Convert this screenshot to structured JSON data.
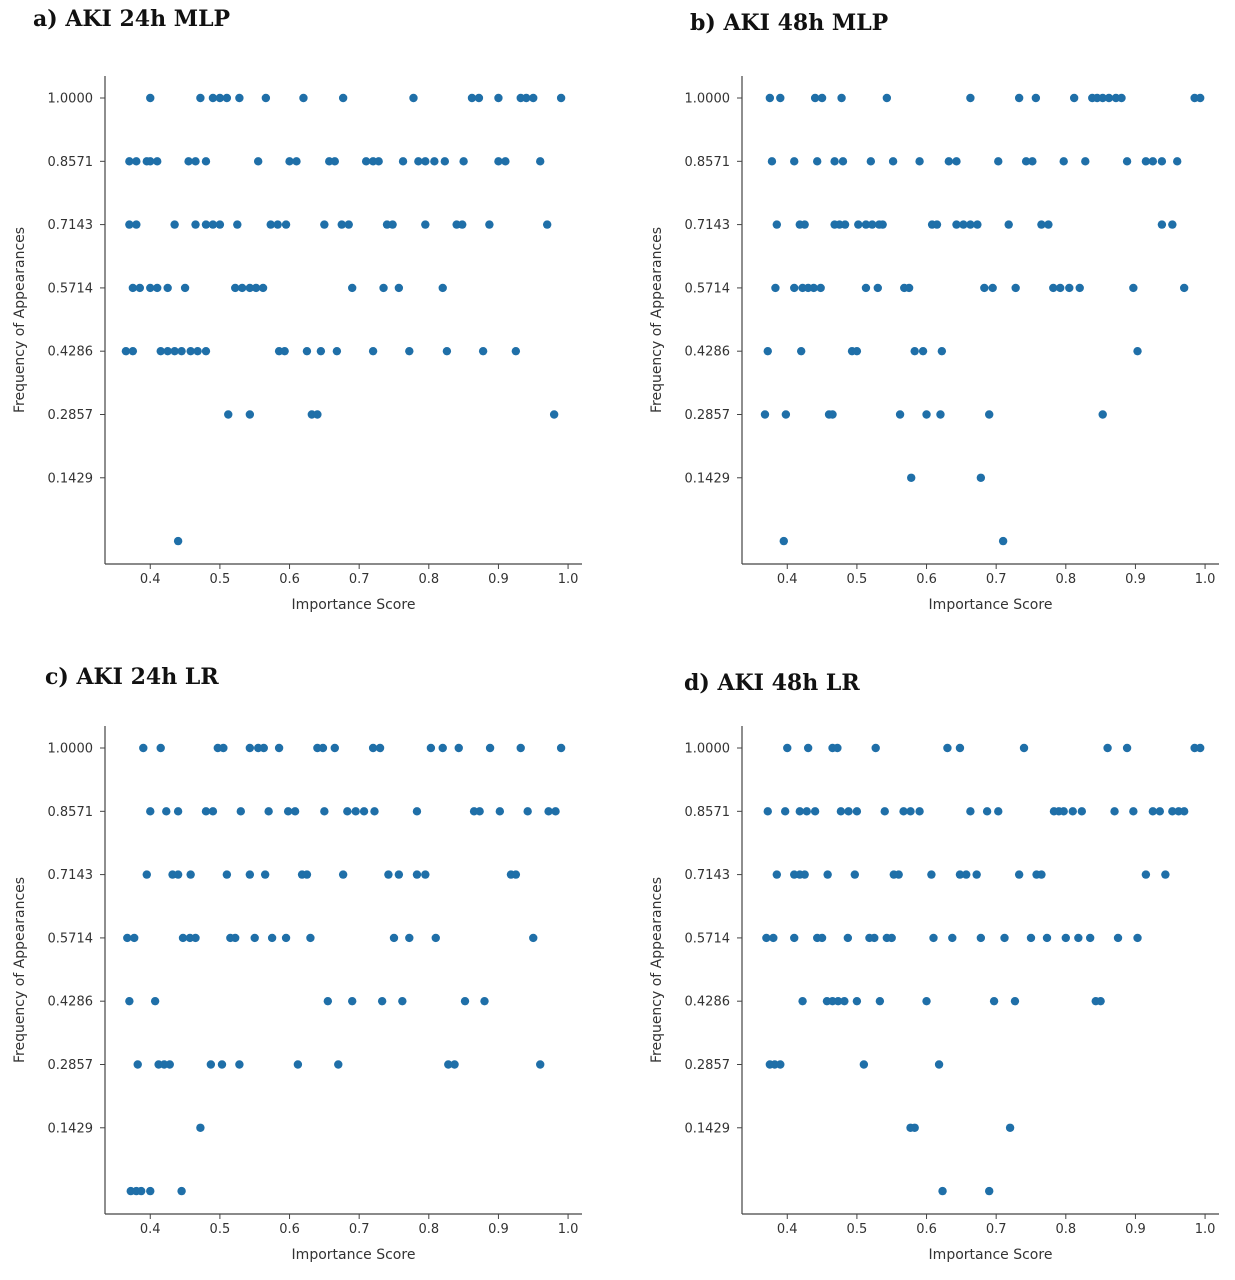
{
  "chart_data": [
    {
      "type": "scatter",
      "title": "a) AKI 24h MLP",
      "xlabel": "Importance Score",
      "ylabel": "Frequency of Appearances",
      "xlim": [
        0.335,
        1.02
      ],
      "xticks": [
        "0.4",
        "0.5",
        "0.6",
        "0.7",
        "0.8",
        "0.9",
        "1.0"
      ],
      "yticks": [
        "1.0000",
        "0.8571",
        "0.7143",
        "0.5714",
        "0.4286",
        "0.2857",
        "0.1429"
      ],
      "color": "#1f6fa8",
      "points": [
        {
          "y": 1.0,
          "x": [
            0.4,
            0.472,
            0.49,
            0.5,
            0.51,
            0.528,
            0.566,
            0.62,
            0.677,
            0.778,
            0.862,
            0.872,
            0.9,
            0.932,
            0.94,
            0.95,
            0.99
          ]
        },
        {
          "y": 0.8571,
          "x": [
            0.37,
            0.38,
            0.395,
            0.4,
            0.41,
            0.455,
            0.465,
            0.48,
            0.555,
            0.6,
            0.61,
            0.657,
            0.665,
            0.71,
            0.72,
            0.728,
            0.763,
            0.785,
            0.795,
            0.808,
            0.823,
            0.85,
            0.9,
            0.91,
            0.96
          ]
        },
        {
          "y": 0.7143,
          "x": [
            0.37,
            0.38,
            0.435,
            0.465,
            0.48,
            0.49,
            0.5,
            0.525,
            0.573,
            0.583,
            0.595,
            0.65,
            0.675,
            0.685,
            0.74,
            0.748,
            0.795,
            0.84,
            0.848,
            0.887,
            0.97
          ]
        },
        {
          "y": 0.5714,
          "x": [
            0.375,
            0.385,
            0.4,
            0.41,
            0.425,
            0.45,
            0.522,
            0.532,
            0.543,
            0.552,
            0.562,
            0.69,
            0.735,
            0.757,
            0.82
          ]
        },
        {
          "y": 0.4286,
          "x": [
            0.365,
            0.375,
            0.415,
            0.425,
            0.435,
            0.445,
            0.458,
            0.468,
            0.48,
            0.585,
            0.593,
            0.625,
            0.645,
            0.668,
            0.72,
            0.772,
            0.826,
            0.878,
            0.925
          ]
        },
        {
          "y": 0.2857,
          "x": [
            0.512,
            0.543,
            0.632,
            0.64,
            0.98
          ]
        },
        {
          "y": 0.0,
          "x": [
            0.44
          ]
        }
      ]
    },
    {
      "type": "scatter",
      "title": "b) AKI 48h MLP",
      "xlabel": "Importance Score",
      "ylabel": "Frequency of Appearances",
      "xlim": [
        0.335,
        1.02
      ],
      "xticks": [
        "0.4",
        "0.5",
        "0.6",
        "0.7",
        "0.8",
        "0.9",
        "1.0"
      ],
      "yticks": [
        "1.0000",
        "0.8571",
        "0.7143",
        "0.5714",
        "0.4286",
        "0.2857",
        "0.1429"
      ],
      "color": "#1f6fa8",
      "points": [
        {
          "y": 1.0,
          "x": [
            0.375,
            0.39,
            0.44,
            0.45,
            0.478,
            0.543,
            0.663,
            0.733,
            0.757,
            0.812,
            0.838,
            0.845,
            0.853,
            0.862,
            0.872,
            0.88,
            0.985,
            0.993
          ]
        },
        {
          "y": 0.8571,
          "x": [
            0.378,
            0.41,
            0.443,
            0.468,
            0.48,
            0.52,
            0.552,
            0.59,
            0.632,
            0.643,
            0.703,
            0.743,
            0.752,
            0.797,
            0.828,
            0.888,
            0.915,
            0.925,
            0.938,
            0.96
          ]
        },
        {
          "y": 0.7143,
          "x": [
            0.385,
            0.418,
            0.425,
            0.468,
            0.475,
            0.483,
            0.502,
            0.513,
            0.522,
            0.532,
            0.537,
            0.608,
            0.615,
            0.643,
            0.653,
            0.663,
            0.673,
            0.718,
            0.765,
            0.775,
            0.938,
            0.953
          ]
        },
        {
          "y": 0.5714,
          "x": [
            0.383,
            0.41,
            0.422,
            0.43,
            0.438,
            0.448,
            0.513,
            0.53,
            0.568,
            0.575,
            0.683,
            0.695,
            0.728,
            0.782,
            0.792,
            0.805,
            0.82,
            0.897,
            0.97
          ]
        },
        {
          "y": 0.4286,
          "x": [
            0.372,
            0.42,
            0.493,
            0.5,
            0.583,
            0.595,
            0.622,
            0.903
          ]
        },
        {
          "y": 0.2857,
          "x": [
            0.368,
            0.398,
            0.46,
            0.465,
            0.562,
            0.6,
            0.62,
            0.69,
            0.853
          ]
        },
        {
          "y": 0.1429,
          "x": [
            0.578,
            0.678
          ]
        },
        {
          "y": 0.0,
          "x": [
            0.395,
            0.71
          ]
        }
      ]
    },
    {
      "type": "scatter",
      "title": "c) AKI 24h LR",
      "xlabel": "Importance Score",
      "ylabel": "Frequency of Appearances",
      "xlim": [
        0.335,
        1.02
      ],
      "xticks": [
        "0.4",
        "0.5",
        "0.6",
        "0.7",
        "0.8",
        "0.9",
        "1.0"
      ],
      "yticks": [
        "1.0000",
        "0.8571",
        "0.7143",
        "0.5714",
        "0.4286",
        "0.2857",
        "0.1429"
      ],
      "color": "#1f6fa8",
      "points": [
        {
          "y": 1.0,
          "x": [
            0.39,
            0.415,
            0.497,
            0.505,
            0.543,
            0.555,
            0.563,
            0.585,
            0.64,
            0.648,
            0.665,
            0.72,
            0.73,
            0.803,
            0.82,
            0.843,
            0.888,
            0.932,
            0.99
          ]
        },
        {
          "y": 0.8571,
          "x": [
            0.4,
            0.423,
            0.44,
            0.48,
            0.49,
            0.53,
            0.57,
            0.598,
            0.608,
            0.65,
            0.683,
            0.695,
            0.707,
            0.722,
            0.783,
            0.865,
            0.873,
            0.902,
            0.942,
            0.972,
            0.982
          ]
        },
        {
          "y": 0.7143,
          "x": [
            0.395,
            0.432,
            0.44,
            0.458,
            0.51,
            0.543,
            0.565,
            0.618,
            0.625,
            0.677,
            0.742,
            0.757,
            0.783,
            0.795,
            0.918,
            0.925
          ]
        },
        {
          "y": 0.5714,
          "x": [
            0.367,
            0.377,
            0.447,
            0.457,
            0.465,
            0.515,
            0.522,
            0.55,
            0.575,
            0.595,
            0.63,
            0.75,
            0.772,
            0.81,
            0.95
          ]
        },
        {
          "y": 0.4286,
          "x": [
            0.37,
            0.407,
            0.655,
            0.69,
            0.733,
            0.762,
            0.852,
            0.88
          ]
        },
        {
          "y": 0.2857,
          "x": [
            0.382,
            0.412,
            0.42,
            0.428,
            0.487,
            0.503,
            0.528,
            0.612,
            0.67,
            0.828,
            0.837,
            0.96
          ]
        },
        {
          "y": 0.1429,
          "x": [
            0.472
          ]
        },
        {
          "y": 0.0,
          "x": [
            0.372,
            0.38,
            0.387,
            0.4,
            0.445
          ]
        }
      ]
    },
    {
      "type": "scatter",
      "title": "d) AKI 48h LR",
      "xlabel": "Importance Score",
      "ylabel": "Frequency of Appearances",
      "xlim": [
        0.335,
        1.02
      ],
      "xticks": [
        "0.4",
        "0.5",
        "0.6",
        "0.7",
        "0.8",
        "0.9",
        "1.0"
      ],
      "yticks": [
        "1.0000",
        "0.8571",
        "0.7143",
        "0.5714",
        "0.4286",
        "0.2857",
        "0.1429"
      ],
      "color": "#1f6fa8",
      "points": [
        {
          "y": 1.0,
          "x": [
            0.4,
            0.43,
            0.465,
            0.472,
            0.527,
            0.63,
            0.648,
            0.74,
            0.86,
            0.888,
            0.985,
            0.993
          ]
        },
        {
          "y": 0.8571,
          "x": [
            0.372,
            0.397,
            0.418,
            0.428,
            0.44,
            0.477,
            0.488,
            0.5,
            0.54,
            0.567,
            0.577,
            0.59,
            0.663,
            0.687,
            0.703,
            0.783,
            0.79,
            0.797,
            0.81,
            0.823,
            0.87,
            0.897,
            0.925,
            0.935,
            0.953,
            0.962,
            0.97
          ]
        },
        {
          "y": 0.7143,
          "x": [
            0.385,
            0.41,
            0.418,
            0.425,
            0.458,
            0.497,
            0.553,
            0.56,
            0.607,
            0.648,
            0.657,
            0.672,
            0.733,
            0.758,
            0.765,
            0.915,
            0.943
          ]
        },
        {
          "y": 0.5714,
          "x": [
            0.37,
            0.38,
            0.41,
            0.443,
            0.45,
            0.487,
            0.518,
            0.525,
            0.543,
            0.55,
            0.61,
            0.637,
            0.678,
            0.712,
            0.75,
            0.773,
            0.8,
            0.818,
            0.835,
            0.875,
            0.903
          ]
        },
        {
          "y": 0.4286,
          "x": [
            0.422,
            0.457,
            0.465,
            0.473,
            0.482,
            0.5,
            0.533,
            0.6,
            0.697,
            0.727,
            0.843,
            0.85
          ]
        },
        {
          "y": 0.2857,
          "x": [
            0.375,
            0.382,
            0.39,
            0.51,
            0.618
          ]
        },
        {
          "y": 0.1429,
          "x": [
            0.577,
            0.583,
            0.72
          ]
        },
        {
          "y": 0.0,
          "x": [
            0.623,
            0.69
          ]
        }
      ]
    }
  ]
}
